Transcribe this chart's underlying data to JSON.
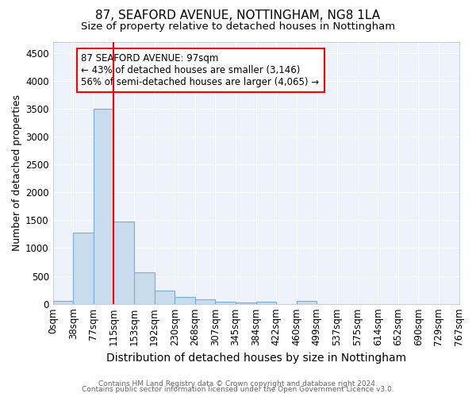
{
  "title": "87, SEAFORD AVENUE, NOTTINGHAM, NG8 1LA",
  "subtitle": "Size of property relative to detached houses in Nottingham",
  "xlabel": "Distribution of detached houses by size in Nottingham",
  "ylabel": "Number of detached properties",
  "footer_line1": "Contains HM Land Registry data © Crown copyright and database right 2024.",
  "footer_line2": "Contains public sector information licensed under the Open Government Licence v3.0.",
  "bin_labels": [
    "0sqm",
    "38sqm",
    "77sqm",
    "115sqm",
    "153sqm",
    "192sqm",
    "230sqm",
    "268sqm",
    "307sqm",
    "345sqm",
    "384sqm",
    "422sqm",
    "460sqm",
    "499sqm",
    "537sqm",
    "575sqm",
    "614sqm",
    "652sqm",
    "690sqm",
    "729sqm",
    "767sqm"
  ],
  "bar_values": [
    50,
    1270,
    3500,
    1480,
    570,
    240,
    120,
    80,
    45,
    30,
    45,
    0,
    55,
    0,
    0,
    0,
    0,
    0,
    0,
    0
  ],
  "bar_color": "#c9dcee",
  "bar_edge_color": "#7aadd4",
  "red_line_bin": 3,
  "annotation_text": "87 SEAFORD AVENUE: 97sqm\n← 43% of detached houses are smaller (3,146)\n56% of semi-detached houses are larger (4,065) →",
  "annotation_box_color": "white",
  "annotation_box_edge_color": "red",
  "ylim": [
    0,
    4700
  ],
  "yticks": [
    0,
    500,
    1000,
    1500,
    2000,
    2500,
    3000,
    3500,
    4000,
    4500
  ],
  "background_color": "#eef2fa",
  "grid_color": "white",
  "title_fontsize": 11,
  "subtitle_fontsize": 9.5,
  "xlabel_fontsize": 10,
  "ylabel_fontsize": 9,
  "tick_fontsize": 8.5,
  "annotation_fontsize": 8.5
}
